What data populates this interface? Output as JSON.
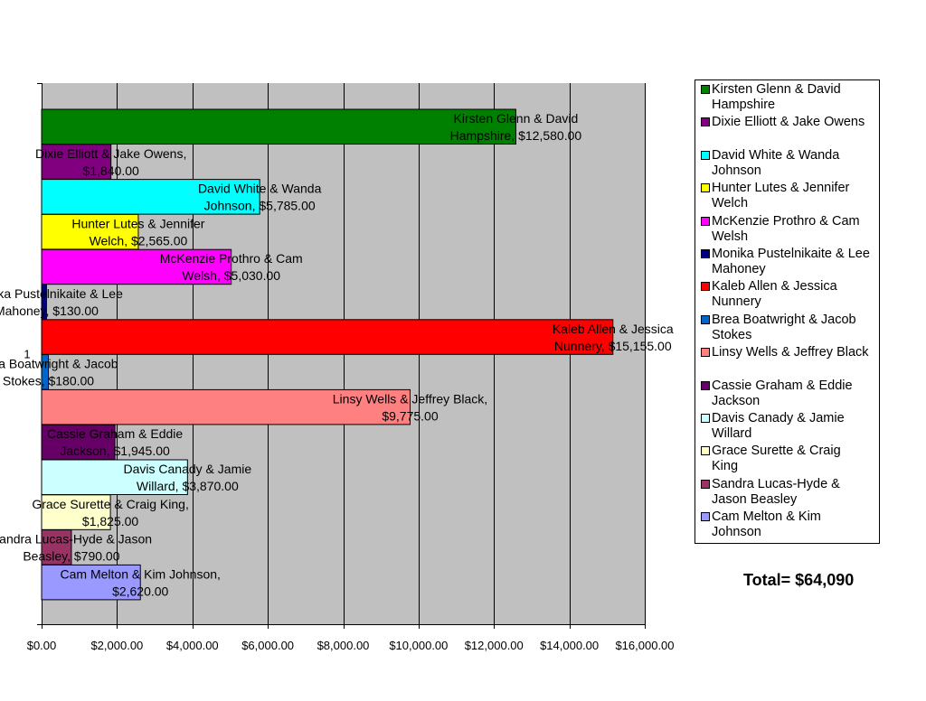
{
  "chart_data": {
    "type": "bar",
    "orientation": "horizontal",
    "category_label": "1",
    "xlim": [
      0,
      16000
    ],
    "x_ticks": [
      "$0.00",
      "$2,000.00",
      "$4,000.00",
      "$6,000.00",
      "$8,000.00",
      "$10,000.00",
      "$12,000.00",
      "$14,000.00",
      "$16,000.00"
    ],
    "grid": true,
    "legend_position": "right",
    "series": [
      {
        "name": "Kirsten Glenn & David Hampshire",
        "value": 12580,
        "label": [
          "Kirsten Glenn & David",
          "Hampshire, $12,580.00"
        ],
        "color": "#008000"
      },
      {
        "name": "Dixie Elliott & Jake Owens",
        "value": 1840,
        "label": [
          "Dixie Elliott & Jake Owens,",
          "$1,840.00"
        ],
        "color": "#800080"
      },
      {
        "name": "David White & Wanda Johnson",
        "value": 5785,
        "label": [
          "David White & Wanda",
          "Johnson, $5,785.00"
        ],
        "color": "#00ffff"
      },
      {
        "name": "Hunter Lutes & Jennifer Welch",
        "value": 2565,
        "label": [
          "Hunter Lutes & Jennifer",
          "Welch, $2,565.00"
        ],
        "color": "#ffff00"
      },
      {
        "name": "McKenzie Prothro & Cam Welsh",
        "value": 5030,
        "label": [
          "McKenzie Prothro & Cam",
          "Welsh, $5,030.00"
        ],
        "color": "#ff00ff"
      },
      {
        "name": "Monika Pustelnikaite & Lee Mahoney",
        "value": 130,
        "label": [
          "Monika Pustelnikaite & Lee",
          "Mahoney, $130.00"
        ],
        "color": "#000080"
      },
      {
        "name": "Kaleb Allen & Jessica Nunnery",
        "value": 15155,
        "label": [
          "Kaleb Allen & Jessica",
          "Nunnery, $15,155.00"
        ],
        "color": "#ff0000"
      },
      {
        "name": "Brea Boatwright & Jacob Stokes",
        "value": 180,
        "label": [
          "Brea Boatwright & Jacob",
          "Stokes, $180.00"
        ],
        "color": "#0066cc"
      },
      {
        "name": "Linsy Wells & Jeffrey Black",
        "value": 9775,
        "label": [
          "Linsy Wells & Jeffrey Black,",
          "$9,775.00"
        ],
        "color": "#ff8080"
      },
      {
        "name": "Cassie Graham & Eddie Jackson",
        "value": 1945,
        "label": [
          "Cassie Graham & Eddie",
          "Jackson, $1,945.00"
        ],
        "color": "#660066"
      },
      {
        "name": "Davis Canady & Jamie Willard",
        "value": 3870,
        "label": [
          "Davis Canady & Jamie",
          "Willard, $3,870.00"
        ],
        "color": "#ccffff"
      },
      {
        "name": "Grace Surette & Craig King",
        "value": 1825,
        "label": [
          "Grace Surette & Craig King,",
          "$1,825.00"
        ],
        "color": "#ffffcc"
      },
      {
        "name": "Sandra Lucas-Hyde & Jason Beasley",
        "value": 790,
        "label": [
          "Sandra Lucas-Hyde & Jason",
          "Beasley, $790.00"
        ],
        "color": "#993366"
      },
      {
        "name": "Cam Melton & Kim Johnson",
        "value": 2620,
        "label": [
          "Cam Melton & Kim Johnson,",
          "$2,620.00"
        ],
        "color": "#9999ff"
      }
    ]
  },
  "legend": [
    {
      "lines": [
        "Kirsten Glenn & David",
        "Hampshire"
      ],
      "color": "#008000"
    },
    {
      "lines": [
        "Dixie Elliott & Jake Owens"
      ],
      "color": "#800080"
    },
    {
      "lines": [
        "David White & Wanda",
        "Johnson"
      ],
      "color": "#00ffff"
    },
    {
      "lines": [
        "Hunter Lutes & Jennifer",
        "Welch"
      ],
      "color": "#ffff00"
    },
    {
      "lines": [
        "McKenzie Prothro & Cam",
        "Welsh"
      ],
      "color": "#ff00ff"
    },
    {
      "lines": [
        "Monika Pustelnikaite & Lee",
        "Mahoney"
      ],
      "color": "#000080"
    },
    {
      "lines": [
        "Kaleb Allen & Jessica",
        "Nunnery"
      ],
      "color": "#ff0000"
    },
    {
      "lines": [
        "Brea Boatwright & Jacob",
        "Stokes"
      ],
      "color": "#0066cc"
    },
    {
      "lines": [
        "Linsy Wells & Jeffrey Black"
      ],
      "color": "#ff8080"
    },
    {
      "lines": [
        "Cassie Graham & Eddie",
        "Jackson"
      ],
      "color": "#660066"
    },
    {
      "lines": [
        "Davis Canady & Jamie",
        "Willard"
      ],
      "color": "#ccffff"
    },
    {
      "lines": [
        "Grace Surette & Craig",
        "King"
      ],
      "color": "#ffffcc"
    },
    {
      "lines": [
        "Sandra Lucas-Hyde &",
        "Jason Beasley"
      ],
      "color": "#993366"
    },
    {
      "lines": [
        "Cam Melton & Kim",
        "Johnson"
      ],
      "color": "#9999ff"
    }
  ],
  "total_text": "Total= $64,090"
}
